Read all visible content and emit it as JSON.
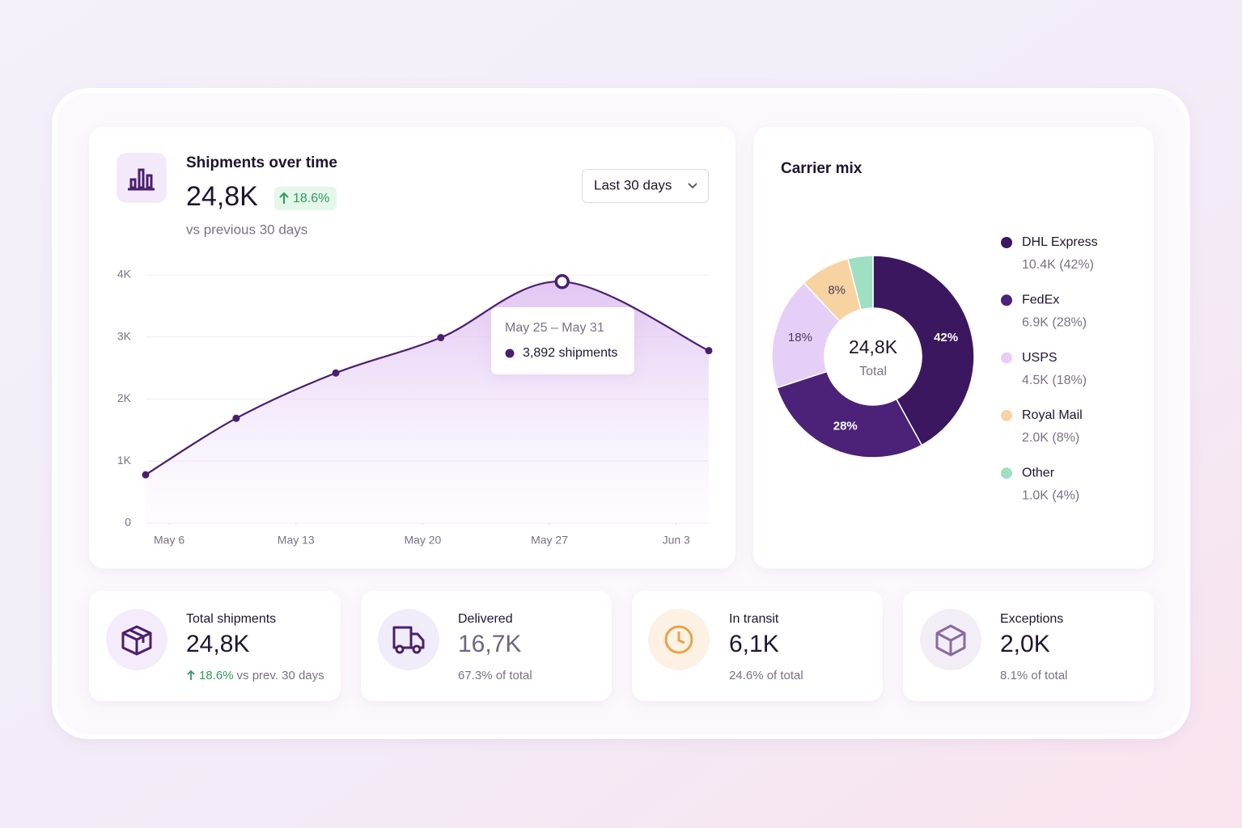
{
  "shipments_card": {
    "title": "Shipments over time",
    "value": "24,8K",
    "change": "18.6%",
    "subtitle": "vs previous 30 days",
    "range": "Last 30 days",
    "tooltip": {
      "title": "May 25 – May 31",
      "label": "3,892 shipments"
    }
  },
  "carrier_card": {
    "title": "Carrier mix",
    "center_value": "24,8K",
    "center_label": "Total"
  },
  "chart_data": [
    {
      "type": "line",
      "x": [
        -1.3,
        3.7,
        9.2,
        15,
        21.7,
        29.8
      ],
      "values": [
        780,
        1690,
        2420,
        2990,
        3892,
        2780
      ],
      "color": "#4a1f6e",
      "xlim": [
        -1.3,
        29.8
      ],
      "xticks": [
        {
          "value": 0,
          "label": "May 6"
        },
        {
          "value": 7,
          "label": "May 13"
        },
        {
          "value": 14,
          "label": "May 20"
        },
        {
          "value": 21,
          "label": "May 27"
        },
        {
          "value": 28,
          "label": "Jun 3"
        }
      ],
      "ylim": [
        0,
        4000
      ],
      "yticks": [
        0,
        {
          "value": 1000,
          "label": "1K"
        },
        {
          "value": 2000,
          "label": "2K"
        },
        {
          "value": 3000,
          "label": "3K"
        },
        {
          "value": 4000,
          "label": "4K"
        }
      ],
      "grid": true
    },
    {
      "type": "pie",
      "categories": [
        "DHL Express",
        "FedEx",
        "USPS",
        "Royal Mail",
        "Other"
      ],
      "values": [
        42,
        28,
        18,
        8,
        4
      ],
      "value_labels": [
        "42%",
        "28%",
        "18%",
        "8%",
        null
      ],
      "details": [
        "10.4K (42%)",
        "6.9K (28%)",
        "4.5K (18%)",
        "2.0K (8%)",
        "1.0K (4%)"
      ],
      "colors": [
        "#3b1760",
        "#4b2277",
        "#e6cff7",
        "#f8d3a2",
        "#9fdfc2"
      ],
      "legend": "right"
    }
  ],
  "kpis": [
    {
      "label": "Total shipments",
      "value": "24,8K",
      "change": "18.6%",
      "note": "vs prev. 30 days"
    },
    {
      "label": "Delivered",
      "value": "16,7K",
      "note": "67.3% of total"
    },
    {
      "label": "In transit",
      "value": "6,1K",
      "note": "24.6% of total"
    },
    {
      "label": "Exceptions",
      "value": "2,0K",
      "note": "8.1% of total"
    }
  ]
}
